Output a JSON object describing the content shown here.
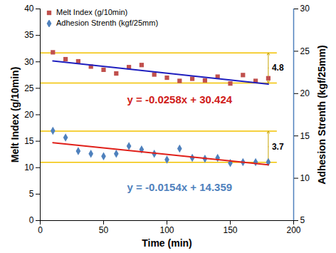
{
  "chart_data": {
    "type": "scatter",
    "x_label": "Time (min)",
    "y_label": "Melt Index (g/10min)",
    "y2_label": "Adhesion Strenth (kgf/25mm)",
    "xlim": [
      0,
      200
    ],
    "xticks": [
      0,
      50,
      100,
      150,
      200
    ],
    "ylim": [
      0,
      40
    ],
    "yticks": [
      0,
      5,
      10,
      15,
      20,
      25,
      30,
      35,
      40
    ],
    "y2lim": [
      5,
      30
    ],
    "y2ticks": [
      5,
      10,
      15,
      20,
      25,
      30
    ],
    "grid": false,
    "legend": "top-left",
    "x": [
      10,
      20,
      30,
      40,
      50,
      60,
      70,
      80,
      90,
      100,
      110,
      120,
      130,
      140,
      150,
      160,
      170,
      180
    ],
    "series": [
      {
        "name": "Melt Index (g/10min)",
        "type": "scatter",
        "marker": "square",
        "color": "#c0504d",
        "values": [
          31.8,
          30.5,
          30.1,
          29.1,
          28.5,
          27.8,
          29.0,
          29.4,
          27.6,
          27.0,
          26.4,
          26.8,
          26.5,
          27.2,
          25.9,
          27.5,
          26.4,
          26.9
        ]
      },
      {
        "name": "Adhesion Strenth (kgf/25mm)",
        "type": "scatter",
        "marker": "diamond",
        "color": "#4f81bd",
        "axis": "y2",
        "values": [
          15.6,
          14.8,
          13.2,
          12.9,
          12.6,
          12.9,
          13.8,
          13.4,
          12.9,
          12.2,
          13.5,
          12.4,
          12.3,
          12.4,
          11.8,
          11.9,
          11.9,
          11.9
        ]
      },
      {
        "type": "line",
        "color": "#1f1fbf",
        "x": [
          10,
          180
        ],
        "values": [
          30.17,
          25.78
        ]
      },
      {
        "type": "line",
        "color": "#e0201a",
        "axis": "y2",
        "x": [
          10,
          180
        ],
        "values": [
          14.2,
          11.59
        ]
      }
    ],
    "bands": [
      {
        "y": [
          31.7,
          26.0
        ],
        "x": [
          0,
          187
        ],
        "label": "4.8",
        "arrow_x": 180,
        "color": "#f2c200"
      },
      {
        "y": [
          16.9,
          11.0
        ],
        "x": [
          0,
          187
        ],
        "label": "3.7",
        "arrow_x": 180,
        "color": "#f2c200"
      }
    ],
    "annotations": [
      {
        "text": "y = -0.0258x + 30.424",
        "x": 110,
        "y": 22.8,
        "color": "#d0201a"
      },
      {
        "text": "y = -0.0154x + 14.359",
        "x": 110,
        "y": 6.3,
        "color": "#4f81bd"
      }
    ]
  }
}
